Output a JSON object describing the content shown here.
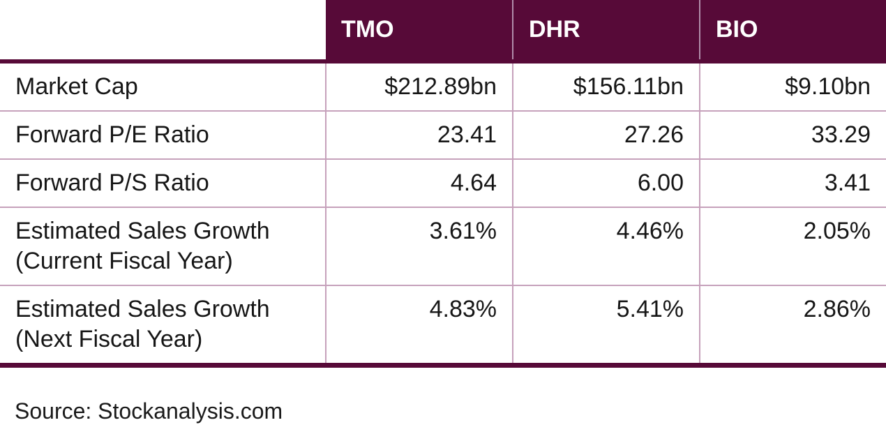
{
  "table": {
    "columns": [
      "TMO",
      "DHR",
      "BIO"
    ],
    "rows": [
      {
        "label": [
          "Market Cap",
          null
        ],
        "values": [
          "$212.89bn",
          "$156.11bn",
          "$9.10bn"
        ]
      },
      {
        "label": [
          "Forward P/E Ratio",
          null
        ],
        "values": [
          "23.41",
          "27.26",
          "33.29"
        ]
      },
      {
        "label": [
          "Forward P/S Ratio",
          null
        ],
        "values": [
          "4.64",
          "6.00",
          "3.41"
        ]
      },
      {
        "label": [
          "Estimated Sales Growth",
          "(Current Fiscal Year)"
        ],
        "values": [
          "3.61%",
          "4.46%",
          "2.05%"
        ]
      },
      {
        "label": [
          "Estimated Sales Growth",
          "(Next Fiscal Year)"
        ],
        "values": [
          "4.83%",
          "5.41%",
          "2.86%"
        ]
      }
    ]
  },
  "source": "Source: Stockanalysis.com",
  "colors": {
    "header_bg": "#570a38",
    "thick_rule": "#570a38",
    "row_divider": "#c6a1bb",
    "header_divider": "#b18daa",
    "header_text": "#ffffff",
    "body_text": "#161616"
  },
  "chart_data": {
    "type": "table",
    "columns": [
      "",
      "TMO",
      "DHR",
      "BIO"
    ],
    "rows": [
      [
        "Market Cap",
        "$212.89bn",
        "$156.11bn",
        "$9.10bn"
      ],
      [
        "Forward P/E Ratio",
        "23.41",
        "27.26",
        "33.29"
      ],
      [
        "Forward P/S Ratio",
        "4.64",
        "6.00",
        "3.41"
      ],
      [
        "Estimated Sales Growth (Current Fiscal Year)",
        "3.61%",
        "4.46%",
        "2.05%"
      ],
      [
        "Estimated Sales Growth (Next Fiscal Year)",
        "4.83%",
        "5.41%",
        "2.86%"
      ]
    ],
    "source": "Source: Stockanalysis.com"
  }
}
